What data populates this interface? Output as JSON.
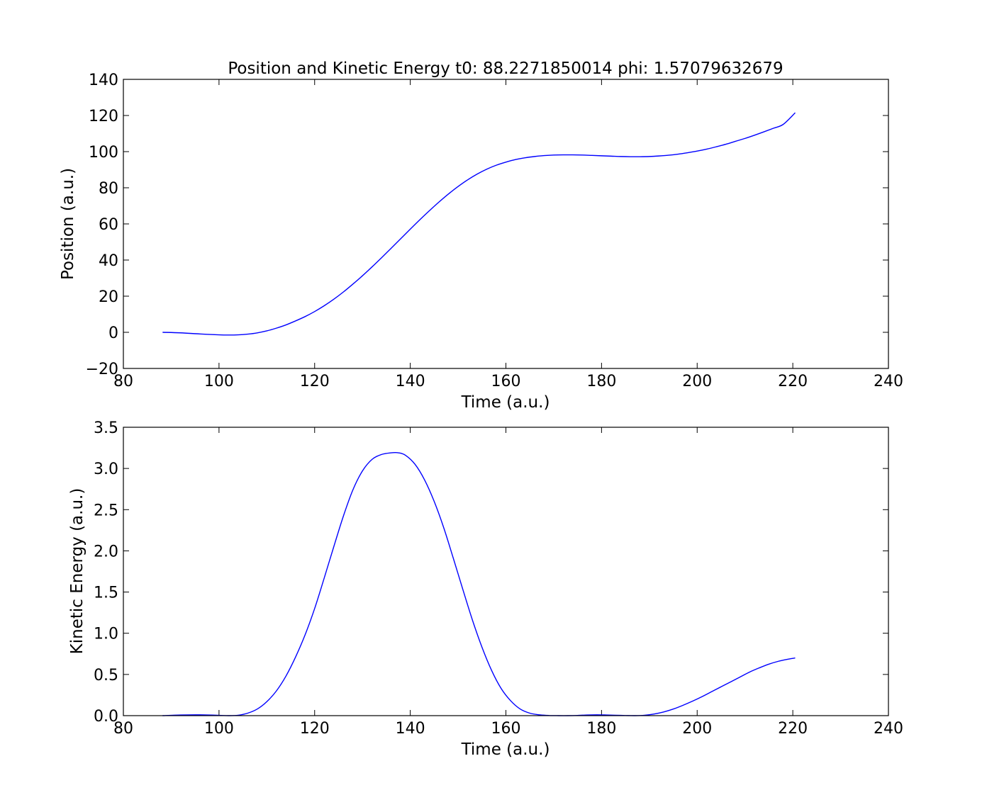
{
  "chart_data": [
    {
      "type": "line",
      "title": "Position and Kinetic Energy t0: 88.2271850014 phi: 1.57079632679",
      "xlabel": "Time (a.u.)",
      "ylabel": "Position (a.u.)",
      "xlim": [
        80,
        240
      ],
      "ylim": [
        -20,
        140
      ],
      "xticks": [
        80,
        100,
        120,
        140,
        160,
        180,
        200,
        220,
        240
      ],
      "xtick_labels": [
        "80",
        "100",
        "120",
        "140",
        "160",
        "180",
        "200",
        "220",
        "240"
      ],
      "yticks": [
        -20,
        0,
        20,
        40,
        60,
        80,
        100,
        120,
        140
      ],
      "ytick_labels": [
        "−20",
        "0",
        "20",
        "40",
        "60",
        "80",
        "100",
        "120",
        "140"
      ],
      "grid": false,
      "series": [
        {
          "color": "#0000ff",
          "x": [
            88.2,
            92,
            96,
            100,
            102,
            104,
            106,
            108,
            110,
            112,
            114,
            116,
            118,
            120,
            122,
            124,
            126,
            128,
            130,
            132,
            134,
            136,
            138,
            140,
            142,
            144,
            146,
            148,
            150,
            152,
            154,
            156,
            158,
            160,
            162,
            164,
            166,
            168,
            170,
            172,
            174,
            176,
            178,
            180,
            182,
            184,
            186,
            188,
            190,
            192,
            194,
            196,
            198,
            200,
            202,
            204,
            206,
            208,
            210,
            212,
            214,
            216,
            218,
            220.5
          ],
          "y": [
            0,
            -0.3,
            -0.9,
            -1.4,
            -1.5,
            -1.4,
            -1.0,
            -0.3,
            0.8,
            2.3,
            4.1,
            6.3,
            8.7,
            11.5,
            14.7,
            18.3,
            22.3,
            26.7,
            31.3,
            36.2,
            41.3,
            46.5,
            51.8,
            57.1,
            62.3,
            67.3,
            72.1,
            76.6,
            80.7,
            84.4,
            87.6,
            90.3,
            92.5,
            94.2,
            95.6,
            96.6,
            97.3,
            97.8,
            98.1,
            98.2,
            98.2,
            98.1,
            97.9,
            97.7,
            97.5,
            97.3,
            97.2,
            97.2,
            97.3,
            97.6,
            98.0,
            98.6,
            99.4,
            100.3,
            101.4,
            102.7,
            104.1,
            105.7,
            107.3,
            109.1,
            111.0,
            113.0,
            115.1,
            121.5
          ]
        }
      ]
    },
    {
      "type": "line",
      "xlabel": "Time (a.u.)",
      "ylabel": "Kinetic Energy (a.u.)",
      "xlim": [
        80,
        240
      ],
      "ylim": [
        0,
        3.5
      ],
      "xticks": [
        80,
        100,
        120,
        140,
        160,
        180,
        200,
        220,
        240
      ],
      "xtick_labels": [
        "80",
        "100",
        "120",
        "140",
        "160",
        "180",
        "200",
        "220",
        "240"
      ],
      "yticks": [
        0,
        0.5,
        1.0,
        1.5,
        2.0,
        2.5,
        3.0,
        3.5
      ],
      "ytick_labels": [
        "0.0",
        "0.5",
        "1.0",
        "1.5",
        "2.0",
        "2.5",
        "3.0",
        "3.5"
      ],
      "grid": false,
      "series": [
        {
          "color": "#0000ff",
          "x": [
            88.2,
            92,
            96,
            100,
            102,
            104,
            106,
            108,
            110,
            112,
            114,
            116,
            118,
            120,
            122,
            124,
            126,
            128,
            130,
            132,
            134,
            136,
            137.5,
            139,
            141,
            143,
            145,
            147,
            149,
            151,
            153,
            155,
            157,
            159,
            161,
            163,
            165,
            167,
            169,
            171,
            173,
            175,
            177,
            179,
            181,
            183,
            185,
            187,
            189,
            191,
            193,
            195,
            197,
            199,
            201,
            203,
            205,
            207,
            209,
            211,
            213,
            215,
            217,
            219,
            220.5
          ],
          "y": [
            0.0,
            0.008,
            0.01,
            0.004,
            0.0,
            0.005,
            0.03,
            0.08,
            0.17,
            0.3,
            0.48,
            0.71,
            0.98,
            1.3,
            1.67,
            2.05,
            2.42,
            2.74,
            2.97,
            3.11,
            3.17,
            3.19,
            3.19,
            3.16,
            3.05,
            2.86,
            2.6,
            2.28,
            1.91,
            1.53,
            1.16,
            0.83,
            0.55,
            0.33,
            0.18,
            0.08,
            0.03,
            0.01,
            0.002,
            0.0,
            0.0,
            0.003,
            0.008,
            0.01,
            0.008,
            0.005,
            0.002,
            0.0,
            0.005,
            0.02,
            0.045,
            0.08,
            0.125,
            0.175,
            0.23,
            0.29,
            0.35,
            0.41,
            0.47,
            0.53,
            0.58,
            0.625,
            0.66,
            0.685,
            0.7
          ]
        }
      ]
    }
  ]
}
